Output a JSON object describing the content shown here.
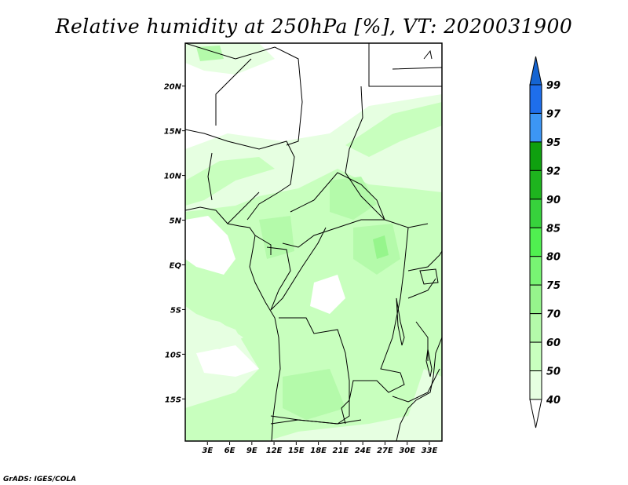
{
  "title": "Relative humidity at 250hPa [%], VT: 2020031900",
  "credit": "GrADS: IGES/COLA",
  "axes": {
    "lon_ticks": [
      "3E",
      "6E",
      "9E",
      "12E",
      "15E",
      "18E",
      "21E",
      "24E",
      "27E",
      "30E",
      "33E"
    ],
    "lon_values": [
      3,
      6,
      9,
      12,
      15,
      18,
      21,
      24,
      27,
      30,
      33
    ],
    "lat_ticks": [
      "20N",
      "15N",
      "10N",
      "5N",
      "EQ",
      "5S",
      "10S",
      "15S"
    ],
    "lat_values": [
      20,
      15,
      10,
      5,
      0,
      -5,
      -10,
      -15
    ],
    "lon_range": [
      0,
      34.7
    ],
    "lat_range": [
      -19.8,
      24.8
    ]
  },
  "colorbar": {
    "labels": [
      "99",
      "97",
      "95",
      "92",
      "90",
      "85",
      "80",
      "75",
      "70",
      "60",
      "50",
      "40"
    ],
    "above_color": "#1464d2",
    "below_color": "#ffffff",
    "bin_colors": [
      "#1e6eeb",
      "#3c96f5",
      "#0fa00f",
      "#1eb41e",
      "#37d23c",
      "#50f050",
      "#78f573",
      "#96f58c",
      "#b4faaa",
      "#c8ffbe",
      "#e6ffe1"
    ]
  },
  "colors": {
    "lvl40": "#e6ffe1",
    "lvl50": "#c8ffbe",
    "lvl60": "#b4faaa",
    "lvl70": "#96f58c"
  }
}
